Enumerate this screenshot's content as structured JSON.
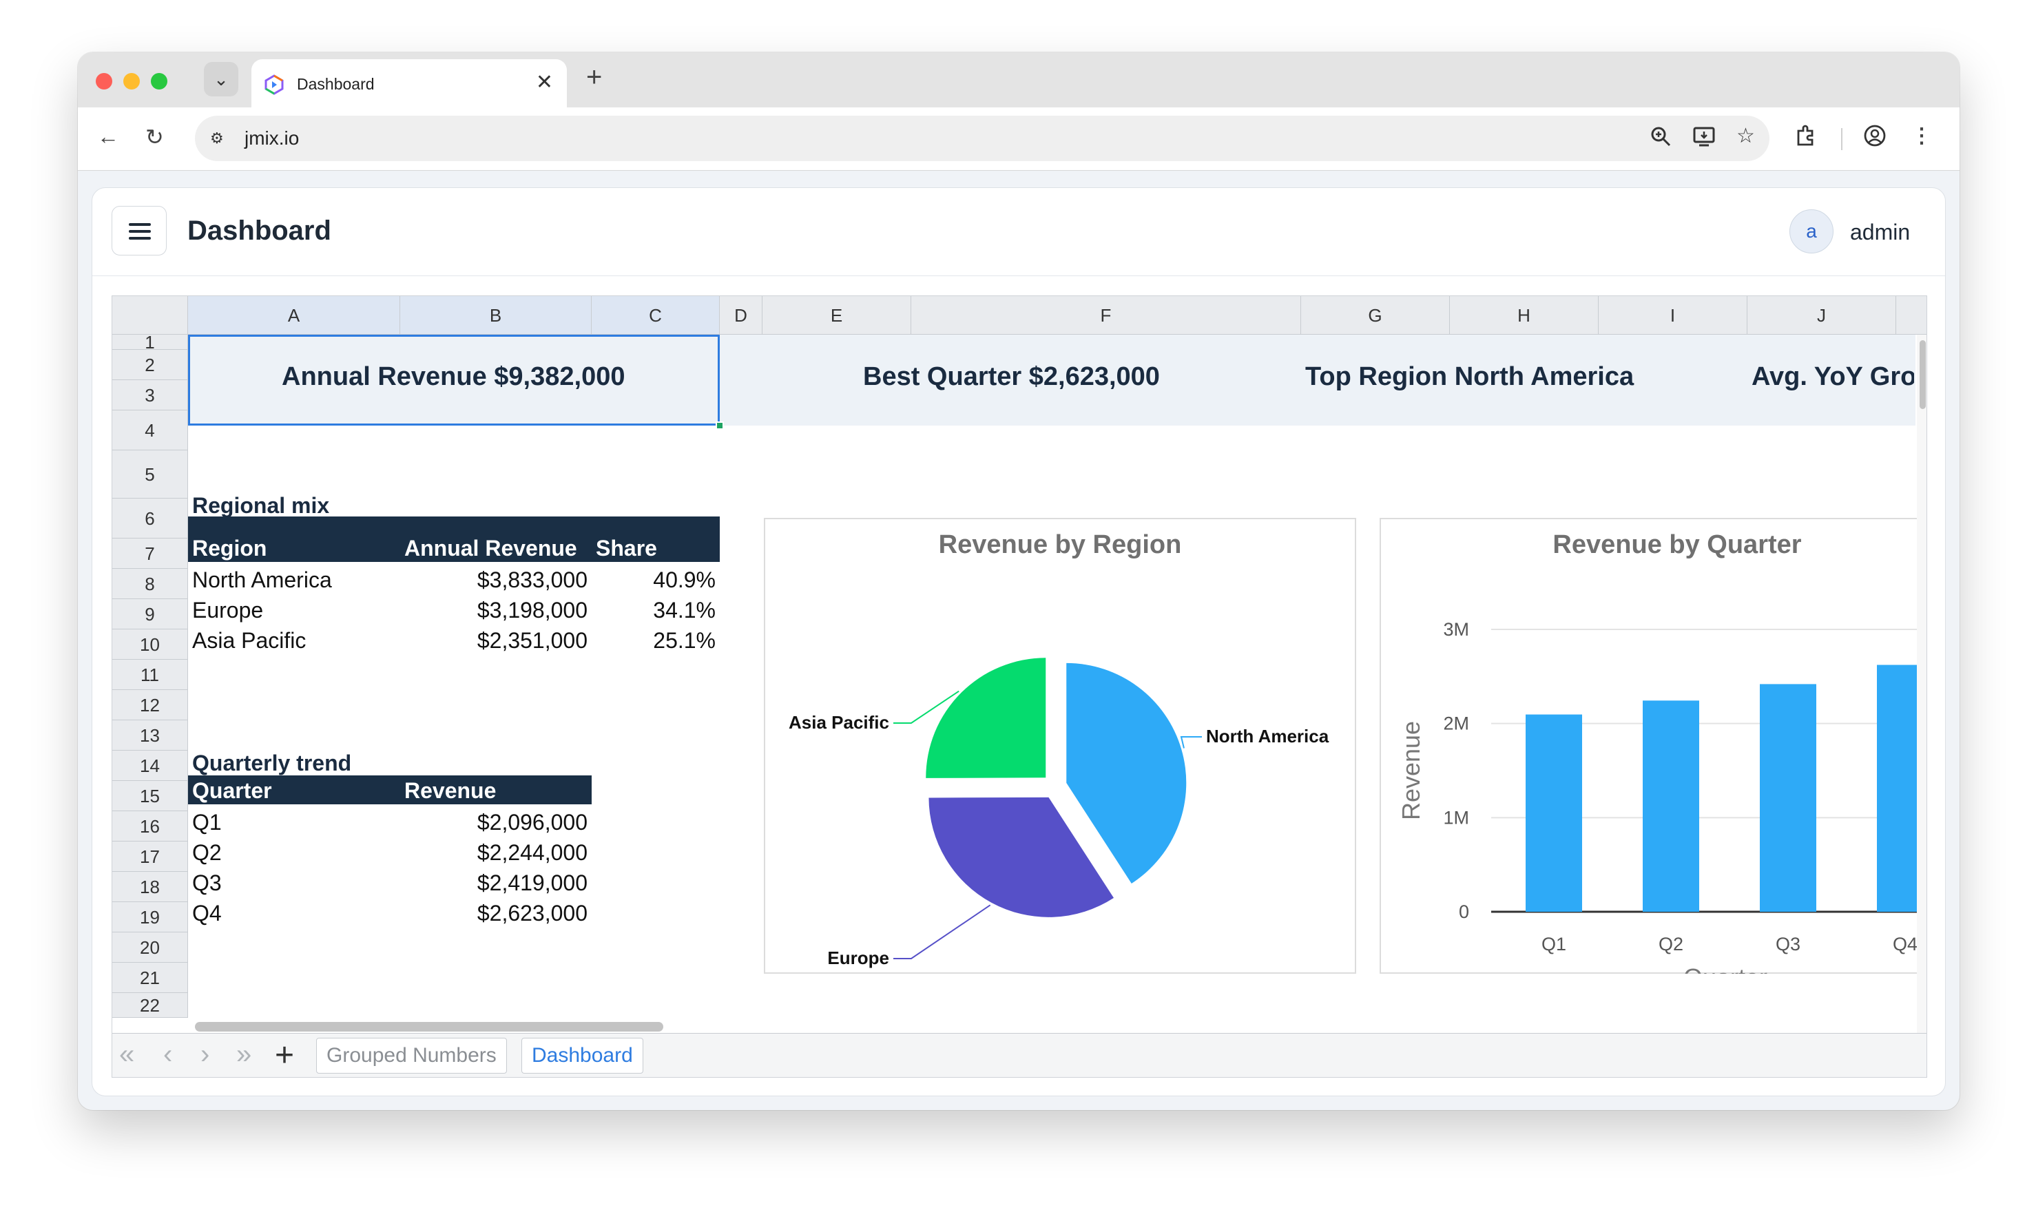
{
  "browser": {
    "tab_title": "Dashboard",
    "tab_close": "✕",
    "new_tab": "+",
    "url": "jmix.io"
  },
  "app": {
    "page_title": "Dashboard",
    "avatar_letter": "a",
    "user_name": "admin"
  },
  "sheet": {
    "columns": [
      "A",
      "B",
      "C",
      "D",
      "E",
      "F",
      "G",
      "H",
      "I",
      "J"
    ],
    "rows": [
      "1",
      "2",
      "3",
      "4",
      "5",
      "6",
      "7",
      "8",
      "9",
      "10",
      "11",
      "12",
      "13",
      "14",
      "15",
      "16",
      "17",
      "18",
      "19",
      "20",
      "21",
      "22"
    ],
    "kpis": {
      "annual_revenue": "Annual Revenue $9,382,000",
      "best_quarter": "Best Quarter $2,623,000",
      "top_region": "Top Region North America",
      "avg_yoy": "Avg. YoY Gro"
    },
    "regional": {
      "section_title": "Regional mix",
      "headers": [
        "Region",
        "Annual Revenue",
        "Share"
      ],
      "rows": [
        [
          "North America",
          "$3,833,000",
          "40.9%"
        ],
        [
          "Europe",
          "$3,198,000",
          "34.1%"
        ],
        [
          "Asia Pacific",
          "$2,351,000",
          "25.1%"
        ]
      ]
    },
    "quarterly": {
      "section_title": "Quarterly trend",
      "headers": [
        "Quarter",
        "Revenue"
      ],
      "rows": [
        [
          "Q1",
          "$2,096,000"
        ],
        [
          "Q2",
          "$2,244,000"
        ],
        [
          "Q3",
          "$2,419,000"
        ],
        [
          "Q4",
          "$2,623,000"
        ]
      ]
    },
    "sheet_tabs": [
      "Grouped Numbers",
      "Dashboard"
    ],
    "active_sheet": "Dashboard"
  },
  "chart_data": [
    {
      "type": "pie",
      "title": "Revenue by Region",
      "categories": [
        "North America",
        "Europe",
        "Asia Pacific"
      ],
      "values": [
        3833000,
        3198000,
        2351000
      ],
      "colors": [
        "#2eaaf7",
        "#5650c8",
        "#05db6e"
      ]
    },
    {
      "type": "bar",
      "title": "Revenue by Quarter",
      "categories": [
        "Q1",
        "Q2",
        "Q3",
        "Q4"
      ],
      "values": [
        2096000,
        2244000,
        2419000,
        2623000
      ],
      "xlabel": "Quarter",
      "ylabel": "Revenue",
      "ylim": [
        0,
        3000000
      ],
      "yticks": [
        "0",
        "1M",
        "2M",
        "3M"
      ],
      "grid": true,
      "color": "#2eaaf7"
    }
  ]
}
